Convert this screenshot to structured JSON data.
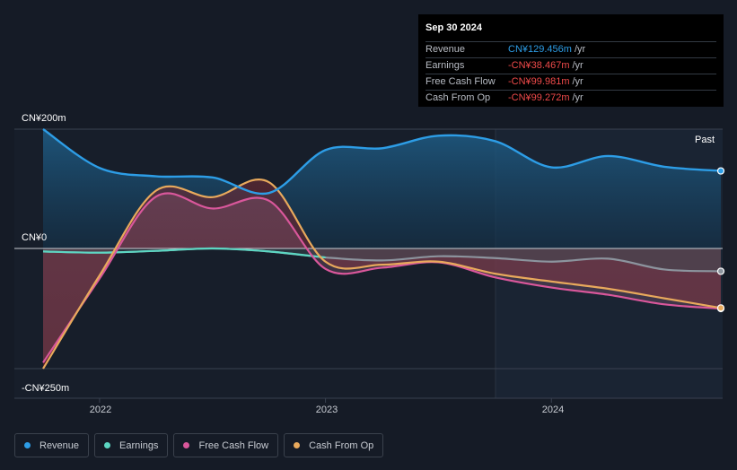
{
  "tooltip": {
    "date": "Sep 30 2024",
    "rows": [
      {
        "label": "Revenue",
        "value": "CN¥129.456m",
        "unit": "/yr",
        "color": "#2d9de6"
      },
      {
        "label": "Earnings",
        "value": "-CN¥38.467m",
        "unit": "/yr",
        "color": "#ef4a4a"
      },
      {
        "label": "Free Cash Flow",
        "value": "-CN¥99.981m",
        "unit": "/yr",
        "color": "#ef4a4a"
      },
      {
        "label": "Cash From Op",
        "value": "-CN¥99.272m",
        "unit": "/yr",
        "color": "#ef4a4a"
      }
    ]
  },
  "past_label": "Past",
  "chart_data": {
    "type": "area",
    "y_tick_labels": [
      "CN¥200m",
      "CN¥0",
      "-CN¥250m"
    ],
    "x_tick_labels": [
      "2022",
      "2023",
      "2024"
    ],
    "ylim": [
      -250,
      200
    ],
    "legend_position": "bottom",
    "series": [
      {
        "name": "Revenue",
        "color": "#2d9de6",
        "x": [
          2021.75,
          2022.0,
          2022.25,
          2022.5,
          2022.75,
          2023.0,
          2023.25,
          2023.5,
          2023.75,
          2024.0,
          2024.25,
          2024.5,
          2024.75
        ],
        "y": [
          200,
          135,
          121,
          119,
          93,
          165,
          168,
          189,
          180,
          136,
          155,
          137,
          130
        ]
      },
      {
        "name": "Earnings",
        "color": "#5cd6c2",
        "x": [
          2021.75,
          2022.0,
          2022.25,
          2022.5,
          2022.75,
          2023.0,
          2023.25,
          2023.5,
          2023.75,
          2024.0,
          2024.25,
          2024.5,
          2024.75
        ],
        "y": [
          -5,
          -7,
          -4,
          0,
          -5,
          -15,
          -20,
          -13,
          -16,
          -22,
          -17,
          -35,
          -38
        ]
      },
      {
        "name": "Free Cash Flow",
        "color": "#d9579b",
        "x": [
          2021.75,
          2022.0,
          2022.25,
          2022.5,
          2022.75,
          2023.0,
          2023.25,
          2023.5,
          2023.75,
          2024.0,
          2024.25,
          2024.5,
          2024.75
        ],
        "y": [
          -190,
          -50,
          87,
          67,
          80,
          -34,
          -32,
          -23,
          -48,
          -65,
          -77,
          -93,
          -100
        ]
      },
      {
        "name": "Cash From Op",
        "color": "#e8a95c",
        "x": [
          2021.75,
          2022.0,
          2022.25,
          2022.5,
          2022.75,
          2023.0,
          2023.25,
          2023.5,
          2023.75,
          2024.0,
          2024.25,
          2024.5,
          2024.75
        ],
        "y": [
          -200,
          -45,
          97,
          86,
          111,
          -22,
          -27,
          -22,
          -42,
          -55,
          -67,
          -83,
          -99
        ]
      }
    ]
  },
  "legend": [
    {
      "label": "Revenue",
      "color": "#2d9de6"
    },
    {
      "label": "Earnings",
      "color": "#5cd6c2"
    },
    {
      "label": "Free Cash Flow",
      "color": "#d9579b"
    },
    {
      "label": "Cash From Op",
      "color": "#e8a95c"
    }
  ]
}
